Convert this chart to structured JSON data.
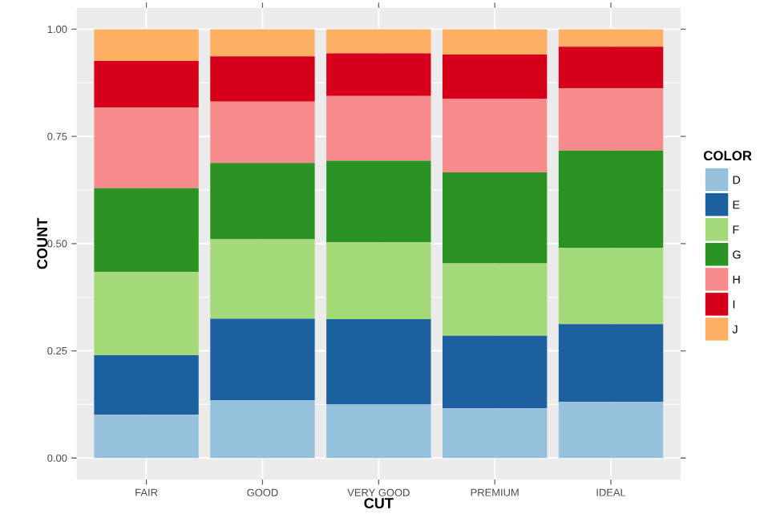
{
  "chart_data": {
    "type": "bar",
    "stacked": true,
    "xlabel": "CUT",
    "ylabel": "COUNT",
    "legend_title": "COLOR",
    "legend": "right",
    "grid": true,
    "categories": [
      "FAIR",
      "GOOD",
      "VERY GOOD",
      "PREMIUM",
      "IDEAL"
    ],
    "ylim": [
      -0.05,
      1.05
    ],
    "yticks": [
      {
        "value": 0,
        "label": "0.00"
      },
      {
        "value": 0.25,
        "label": "0.25"
      },
      {
        "value": 0.5,
        "label": "0.50"
      },
      {
        "value": 0.75,
        "label": "0.75"
      },
      {
        "value": 1,
        "label": "1.00"
      }
    ],
    "series": [
      {
        "name": "D",
        "color": "#96c1dc",
        "values": [
          0.101,
          0.135,
          0.125,
          0.116,
          0.131
        ]
      },
      {
        "name": "E",
        "color": "#1c60a0",
        "values": [
          0.139,
          0.19,
          0.199,
          0.169,
          0.181
        ]
      },
      {
        "name": "F",
        "color": "#a4d97a",
        "values": [
          0.194,
          0.185,
          0.179,
          0.169,
          0.178
        ]
      },
      {
        "name": "G",
        "color": "#2b9323",
        "values": [
          0.195,
          0.178,
          0.19,
          0.212,
          0.227
        ]
      },
      {
        "name": "H",
        "color": "#f78a8b",
        "values": [
          0.188,
          0.143,
          0.151,
          0.171,
          0.145
        ]
      },
      {
        "name": "I",
        "color": "#d7001a",
        "values": [
          0.109,
          0.106,
          0.1,
          0.104,
          0.097
        ]
      },
      {
        "name": "J",
        "color": "#fdb063",
        "values": [
          0.074,
          0.063,
          0.056,
          0.059,
          0.041
        ]
      }
    ]
  }
}
